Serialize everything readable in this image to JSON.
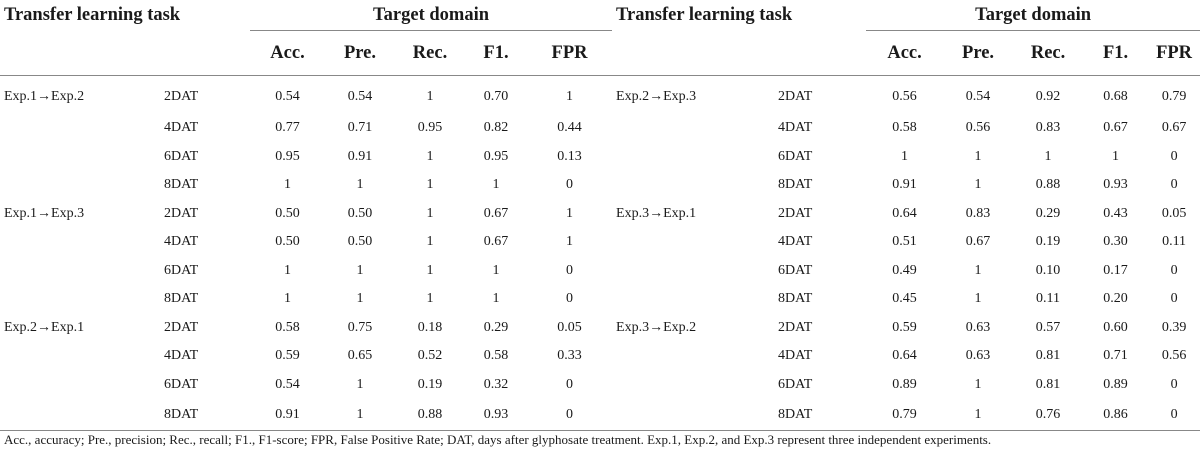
{
  "headers": {
    "task_left": "Transfer learning task",
    "domain_left": "Target domain",
    "task_right": "Transfer learning task",
    "domain_right": "Target domain",
    "metrics": [
      "Acc.",
      "Pre.",
      "Rec.",
      "F1.",
      "FPR"
    ]
  },
  "rows": [
    {
      "lt": "Exp.1→Exp.2",
      "ld": "2DAT",
      "lv": [
        "0.54",
        "0.54",
        "1",
        "0.70",
        "1"
      ],
      "rt": "Exp.2→Exp.3",
      "rd": "2DAT",
      "rv": [
        "0.56",
        "0.54",
        "0.92",
        "0.68",
        "0.79"
      ]
    },
    {
      "lt": "",
      "ld": "4DAT",
      "lv": [
        "0.77",
        "0.71",
        "0.95",
        "0.82",
        "0.44"
      ],
      "rt": "",
      "rd": "4DAT",
      "rv": [
        "0.58",
        "0.56",
        "0.83",
        "0.67",
        "0.67"
      ]
    },
    {
      "lt": "",
      "ld": "6DAT",
      "lv": [
        "0.95",
        "0.91",
        "1",
        "0.95",
        "0.13"
      ],
      "rt": "",
      "rd": "6DAT",
      "rv": [
        "1",
        "1",
        "1",
        "1",
        "0"
      ]
    },
    {
      "lt": "",
      "ld": "8DAT",
      "lv": [
        "1",
        "1",
        "1",
        "1",
        "0"
      ],
      "rt": "",
      "rd": "8DAT",
      "rv": [
        "0.91",
        "1",
        "0.88",
        "0.93",
        "0"
      ]
    },
    {
      "lt": "Exp.1→Exp.3",
      "ld": "2DAT",
      "lv": [
        "0.50",
        "0.50",
        "1",
        "0.67",
        "1"
      ],
      "rt": "Exp.3→Exp.1",
      "rd": "2DAT",
      "rv": [
        "0.64",
        "0.83",
        "0.29",
        "0.43",
        "0.05"
      ]
    },
    {
      "lt": "",
      "ld": "4DAT",
      "lv": [
        "0.50",
        "0.50",
        "1",
        "0.67",
        "1"
      ],
      "rt": "",
      "rd": "4DAT",
      "rv": [
        "0.51",
        "0.67",
        "0.19",
        "0.30",
        "0.11"
      ]
    },
    {
      "lt": "",
      "ld": "6DAT",
      "lv": [
        "1",
        "1",
        "1",
        "1",
        "0"
      ],
      "rt": "",
      "rd": "6DAT",
      "rv": [
        "0.49",
        "1",
        "0.10",
        "0.17",
        "0"
      ]
    },
    {
      "lt": "",
      "ld": "8DAT",
      "lv": [
        "1",
        "1",
        "1",
        "1",
        "0"
      ],
      "rt": "",
      "rd": "8DAT",
      "rv": [
        "0.45",
        "1",
        "0.11",
        "0.20",
        "0"
      ]
    },
    {
      "lt": "Exp.2→Exp.1",
      "ld": "2DAT",
      "lv": [
        "0.58",
        "0.75",
        "0.18",
        "0.29",
        "0.05"
      ],
      "rt": "Exp.3→Exp.2",
      "rd": "2DAT",
      "rv": [
        "0.59",
        "0.63",
        "0.57",
        "0.60",
        "0.39"
      ]
    },
    {
      "lt": "",
      "ld": "4DAT",
      "lv": [
        "0.59",
        "0.65",
        "0.52",
        "0.58",
        "0.33"
      ],
      "rt": "",
      "rd": "4DAT",
      "rv": [
        "0.64",
        "0.63",
        "0.81",
        "0.71",
        "0.56"
      ]
    },
    {
      "lt": "",
      "ld": "6DAT",
      "lv": [
        "0.54",
        "1",
        "0.19",
        "0.32",
        "0"
      ],
      "rt": "",
      "rd": "6DAT",
      "rv": [
        "0.89",
        "1",
        "0.81",
        "0.89",
        "0"
      ]
    },
    {
      "lt": "",
      "ld": "8DAT",
      "lv": [
        "0.91",
        "1",
        "0.88",
        "0.93",
        "0"
      ],
      "rt": "",
      "rd": "8DAT",
      "rv": [
        "0.79",
        "1",
        "0.76",
        "0.86",
        "0"
      ]
    }
  ],
  "footnote": "Acc., accuracy; Pre., precision; Rec., recall; F1., F1-score; FPR, False Positive Rate; DAT, days after glyphosate treatment. Exp.1, Exp.2, and Exp.3 represent three independent experiments."
}
